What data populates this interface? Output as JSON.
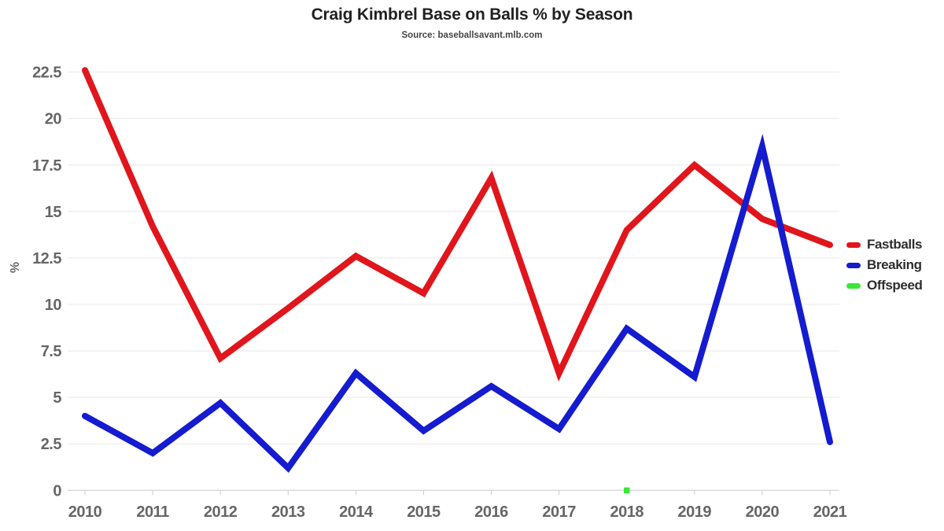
{
  "header": {
    "title": "Craig Kimbrel Base on Balls % by Season",
    "subtitle": "Source: baseballsavant.mlb.com"
  },
  "axes": {
    "y_label": "%",
    "y_ticks": [
      "0",
      "2.5",
      "5",
      "7.5",
      "10",
      "12.5",
      "15",
      "17.5",
      "20",
      "22.5"
    ],
    "x_ticks": [
      "2010",
      "2011",
      "2012",
      "2013",
      "2014",
      "2015",
      "2016",
      "2017",
      "2018",
      "2019",
      "2020",
      "2021"
    ]
  },
  "chart_data": {
    "type": "line",
    "title": "Craig Kimbrel Base on Balls % by Season",
    "subtitle": "Source: baseballsavant.mlb.com",
    "x": [
      2010,
      2011,
      2012,
      2013,
      2014,
      2015,
      2016,
      2017,
      2018,
      2019,
      2020,
      2021
    ],
    "series": [
      {
        "name": "Fastballs",
        "style": "line",
        "color": "#e0161c",
        "values": [
          22.6,
          14.2,
          7.1,
          9.8,
          12.6,
          10.6,
          16.8,
          6.3,
          14.0,
          17.5,
          14.6,
          13.2
        ]
      },
      {
        "name": "Breaking",
        "style": "line",
        "color": "#151bce",
        "values": [
          4.0,
          2.0,
          4.7,
          1.2,
          6.3,
          3.2,
          5.6,
          3.3,
          8.7,
          6.1,
          18.5,
          2.6
        ]
      },
      {
        "name": "Offspeed",
        "style": "point",
        "color": "#39e839",
        "values": [
          null,
          null,
          null,
          null,
          null,
          null,
          null,
          null,
          0,
          null,
          null,
          null
        ]
      }
    ],
    "xlabel": "",
    "ylabel": "%",
    "ylim": [
      0,
      22.5
    ],
    "ytick_step": 2.5,
    "grid": true,
    "legend_position": "right",
    "grid_color": "#e8e8e8",
    "axis_color": "#cccccc",
    "tick_label_color": "#666666",
    "line_width": 8
  }
}
